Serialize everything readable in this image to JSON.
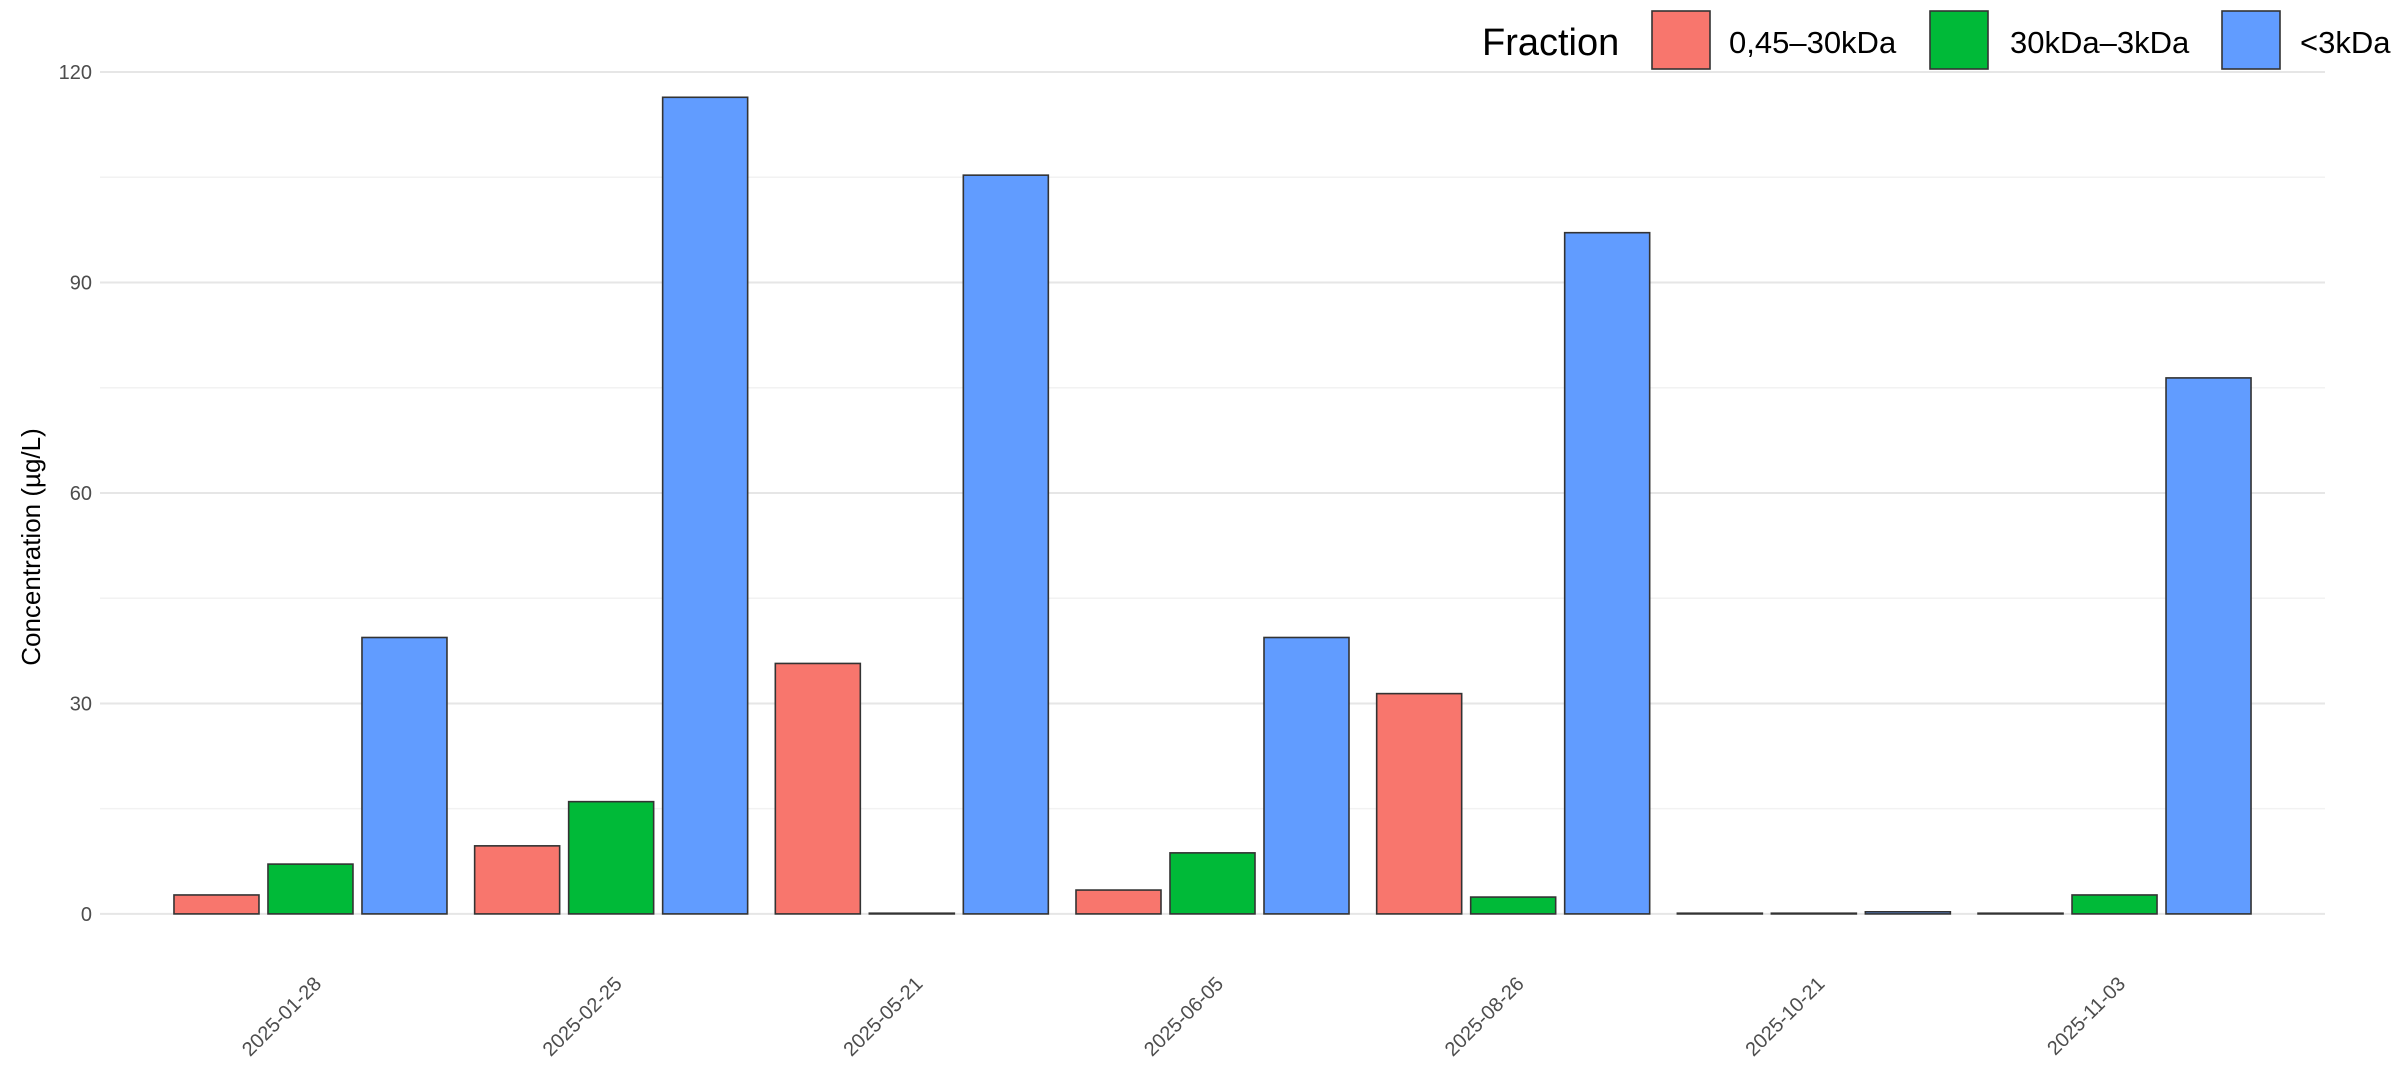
{
  "chart_data": {
    "type": "bar",
    "title": "",
    "xlabel": "",
    "ylabel": "Concentration (µg/L)",
    "ylim": [
      -6,
      122
    ],
    "yticks": [
      0,
      30,
      60,
      90,
      120
    ],
    "grid": true,
    "legend_placement": "top-right",
    "legend_title": "Fraction",
    "categories": [
      "2025-01-28",
      "2025-02-25",
      "2025-05-21",
      "2025-06-05",
      "2025-08-26",
      "2025-10-21",
      "2025-11-03"
    ],
    "series": [
      {
        "name": "0,45–30kDa",
        "color": "#F8766D",
        "values": [
          2.7,
          9.7,
          35.7,
          3.4,
          31.4,
          0.1,
          0.1
        ]
      },
      {
        "name": "30kDa–3kDa",
        "color": "#00BA38",
        "values": [
          7.1,
          16.0,
          0.1,
          8.7,
          2.4,
          0.1,
          2.7
        ]
      },
      {
        "name": "<3kDa",
        "color": "#619CFF",
        "values": [
          39.4,
          116.4,
          105.3,
          39.4,
          97.1,
          0.3,
          76.4
        ]
      }
    ]
  }
}
